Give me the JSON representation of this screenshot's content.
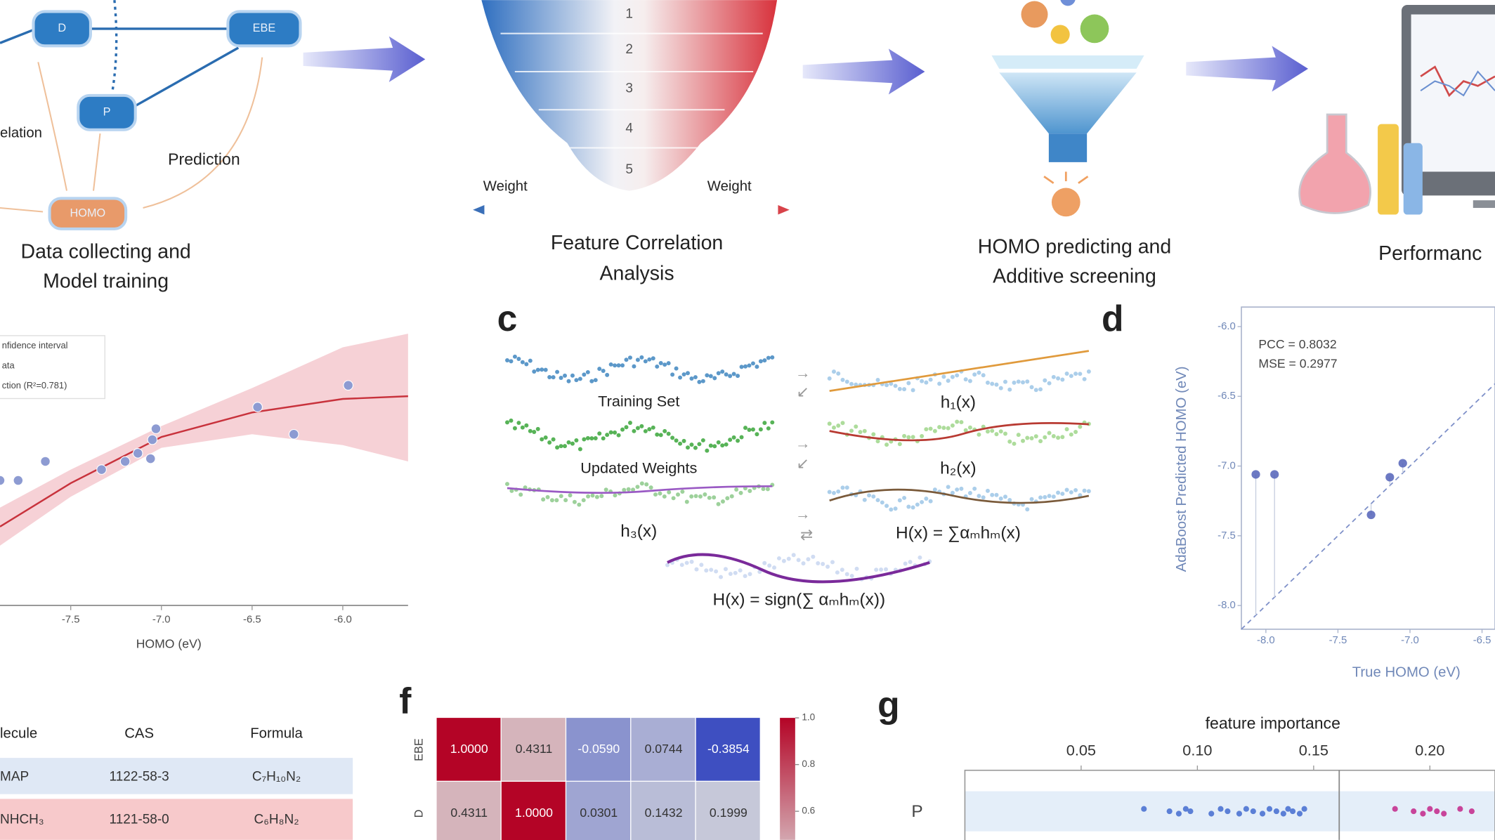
{
  "workflow": {
    "nodes": [
      "D",
      "EBE",
      "P",
      "HOMO"
    ],
    "edge_labels": [
      "elation",
      "Prediction"
    ],
    "steps": [
      [
        "Data collecting and",
        "Model training"
      ],
      [
        "Feature Correlation",
        "Analysis"
      ],
      [
        "HOMO predicting and",
        "Additive  screening"
      ],
      [
        "Performanc"
      ]
    ],
    "funnel_levels": [
      "1",
      "2",
      "3",
      "4",
      "5"
    ],
    "weight_labels": [
      "Weight",
      "Weight"
    ]
  },
  "panel_labels": [
    "c",
    "d",
    "f",
    "g"
  ],
  "ensemble": {
    "labels": [
      "Training Set",
      "Updated Weights",
      "h₁(x)",
      "h₂(x)",
      "h₃(x)",
      "H(x) = ∑αₘhₘ(x)",
      "H(x) = sign(∑ αₘhₘ(x))"
    ]
  },
  "table": {
    "header": [
      "lecule",
      "CAS",
      "Formula"
    ],
    "rows": [
      [
        "MAP",
        "1122-58-3",
        "C₇H₁₀N₂"
      ],
      [
        "NHCH₃",
        "1121-58-0",
        "C₆H₈N₂"
      ]
    ]
  },
  "chart_data": [
    {
      "type": "scatter_fit",
      "legend_labels": [
        "nfidence interval",
        "ata",
        "ction (R²=0.781)"
      ],
      "xlabel": "HOMO (eV)",
      "x": [
        -7.89,
        -7.79,
        -7.64,
        -7.33,
        -7.2,
        -7.13,
        -7.06,
        -7.05,
        -7.03,
        -6.47,
        -6.27,
        -5.97
      ],
      "values": [
        0.46,
        0.46,
        0.53,
        0.5,
        0.53,
        0.56,
        0.54,
        0.61,
        0.65,
        0.73,
        0.63,
        0.81
      ],
      "fit": {
        "x": [
          -7.89,
          -7.5,
          -7.0,
          -6.5,
          -6.0,
          -5.64
        ],
        "values": [
          0.29,
          0.45,
          0.62,
          0.71,
          0.76,
          0.77
        ],
        "upper": [
          0.36,
          0.5,
          0.66,
          0.8,
          0.95,
          1.0
        ],
        "lower": [
          0.22,
          0.4,
          0.58,
          0.63,
          0.59,
          0.53
        ]
      },
      "xlim": [
        -7.89,
        -5.64
      ],
      "ylim": [
        0,
        1
      ],
      "xticks": [
        -7.5,
        {
          "value": -7,
          "label": "-7.0"
        },
        -6.5,
        {
          "value": -6,
          "label": "-6.0"
        }
      ],
      "color": "#8d9bd2",
      "fit_color": "#c8323c",
      "band_color": "#f4c9cf"
    },
    {
      "type": "scatter",
      "annotations": [
        "PCC = 0.8032",
        "MSE = 0.2977"
      ],
      "xlabel": "True HOMO (eV)",
      "ylabel": "AdaBoost Predicted HOMO (eV)",
      "x": [
        -8.07,
        -7.94,
        -7.27,
        -7.14,
        -7.05
      ],
      "values": [
        -7.06,
        -7.06,
        -7.35,
        -7.08,
        -6.98
      ],
      "xlim": [
        -8.17,
        -6.41
      ],
      "ylim": [
        -8.17,
        -5.86
      ],
      "xticks": [
        {
          "value": -8,
          "label": "-8.0"
        },
        -7.5,
        {
          "value": -7,
          "label": "-7.0"
        },
        -6.5
      ],
      "yticks": [
        {
          "value": -6,
          "label": "-6.0"
        },
        -6.5,
        {
          "value": -7,
          "label": "-7.0"
        },
        -7.5,
        {
          "value": -8,
          "label": "-8.0"
        }
      ],
      "color": "#5262b8",
      "diagonal": true
    },
    {
      "type": "heatmap",
      "row_labels": [
        "EBE",
        "D"
      ],
      "values": [
        [
          1.0,
          0.4311,
          -0.059,
          0.0744,
          -0.3854
        ],
        [
          0.4311,
          1.0,
          0.0301,
          0.1432,
          0.1999
        ]
      ],
      "value_labels": [
        [
          "1.0000",
          "0.4311",
          "-0.0590",
          "0.0744",
          "-0.3854"
        ],
        [
          "0.4311",
          "1.0000",
          "0.0301",
          "0.1432",
          "0.1999"
        ]
      ],
      "colormap": "coolwarm",
      "clim": [
        -0.4,
        1.0
      ],
      "colorbar_ticks": [
        {
          "value": 1,
          "label": "1.0"
        },
        {
          "value": 0.8,
          "label": "0.8"
        },
        {
          "value": 0.6,
          "label": "0.6"
        }
      ]
    },
    {
      "type": "strip",
      "title": "feature importance",
      "categories": [
        "P"
      ],
      "groups": [
        {
          "color": "#5b7fd6",
          "values": [
            0.077,
            0.088,
            0.092,
            0.095,
            0.097,
            0.106,
            0.11,
            0.113,
            0.118,
            0.121,
            0.124,
            0.128,
            0.131,
            0.134,
            0.137,
            0.139,
            0.141,
            0.144,
            0.146
          ]
        },
        {
          "color": "#c8449a",
          "values": [
            0.185,
            0.193,
            0.197,
            0.2,
            0.203,
            0.206,
            0.213,
            0.218
          ]
        }
      ],
      "reference_line": 0.161,
      "xlim": [
        0,
        0.228
      ],
      "xticks": [
        0.05,
        {
          "value": 0.1,
          "label": "0.10"
        },
        0.15,
        {
          "value": 0.2,
          "label": "0.20"
        }
      ]
    }
  ]
}
